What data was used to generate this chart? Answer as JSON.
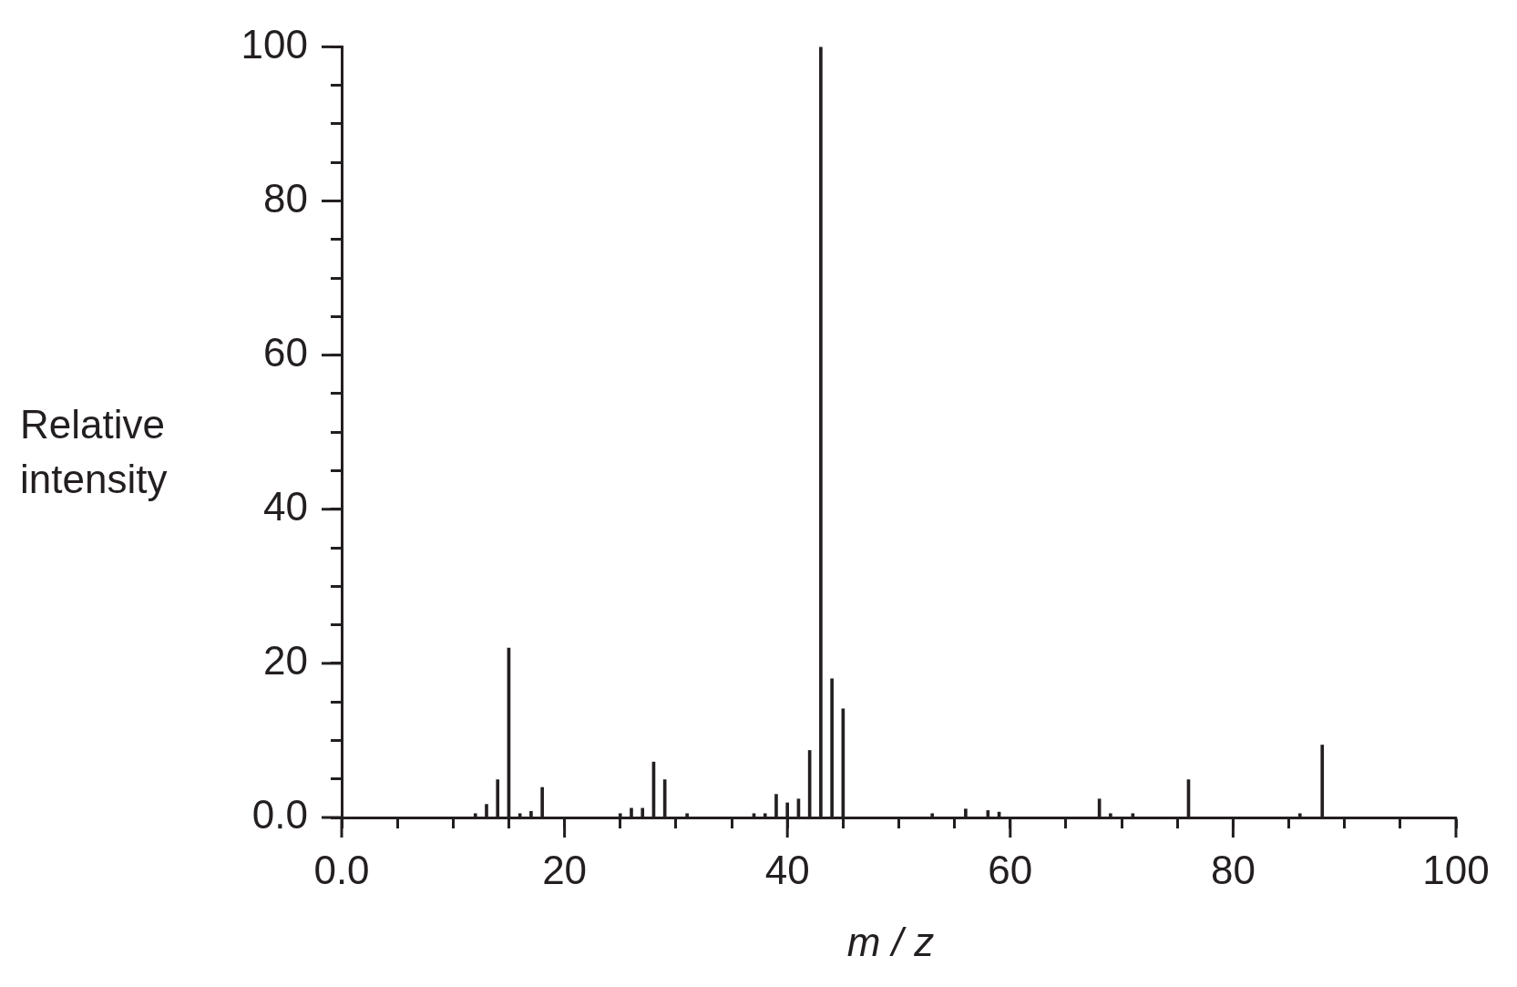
{
  "chart_data": {
    "type": "bar",
    "x": [
      12,
      13,
      14,
      15,
      16,
      17,
      18,
      25,
      26,
      27,
      28,
      29,
      31,
      37,
      38,
      39,
      40,
      41,
      42,
      43,
      44,
      45,
      53,
      56,
      58,
      59,
      68,
      69,
      71,
      76,
      86,
      88
    ],
    "values": [
      0.5,
      1.7,
      4.9,
      22,
      0.5,
      0.8,
      3.9,
      0.5,
      1.2,
      1.2,
      7.2,
      4.9,
      0.5,
      0.5,
      0.5,
      3,
      1.9,
      2.4,
      8.7,
      100,
      18,
      14.1,
      0.5,
      1.1,
      0.9,
      0.7,
      2.4,
      0.5,
      0.5,
      4.9,
      0.5,
      9.4
    ],
    "color": "#231f20",
    "xlabel": "m / z",
    "ylabel": "Relative intensity",
    "xlim": [
      0,
      100
    ],
    "ylim": [
      0,
      100
    ],
    "xticks": [
      {
        "value": 0,
        "label": "0.0"
      },
      {
        "value": 5,
        "label": null
      },
      {
        "value": 10,
        "label": null
      },
      {
        "value": 15,
        "label": null
      },
      20,
      {
        "value": 25,
        "label": null
      },
      {
        "value": 30,
        "label": null
      },
      {
        "value": 35,
        "label": null
      },
      40,
      {
        "value": 45,
        "label": null
      },
      {
        "value": 50,
        "label": null
      },
      {
        "value": 55,
        "label": null
      },
      60,
      {
        "value": 65,
        "label": null
      },
      {
        "value": 70,
        "label": null
      },
      {
        "value": 75,
        "label": null
      },
      80,
      {
        "value": 85,
        "label": null
      },
      {
        "value": 90,
        "label": null
      },
      {
        "value": 95,
        "label": null
      },
      100
    ],
    "yticks": [
      {
        "value": 0,
        "label": "0.0"
      },
      {
        "value": 5,
        "label": null
      },
      {
        "value": 10,
        "label": null
      },
      {
        "value": 15,
        "label": null
      },
      20,
      {
        "value": 25,
        "label": null
      },
      {
        "value": 30,
        "label": null
      },
      {
        "value": 35,
        "label": null
      },
      40,
      {
        "value": 45,
        "label": null
      },
      {
        "value": 50,
        "label": null
      },
      {
        "value": 55,
        "label": null
      },
      60,
      {
        "value": 65,
        "label": null
      },
      {
        "value": 70,
        "label": null
      },
      {
        "value": 75,
        "label": null
      },
      80,
      {
        "value": 85,
        "label": null
      },
      {
        "value": 90,
        "label": null
      },
      {
        "value": 95,
        "label": null
      },
      100
    ],
    "grid": false
  }
}
